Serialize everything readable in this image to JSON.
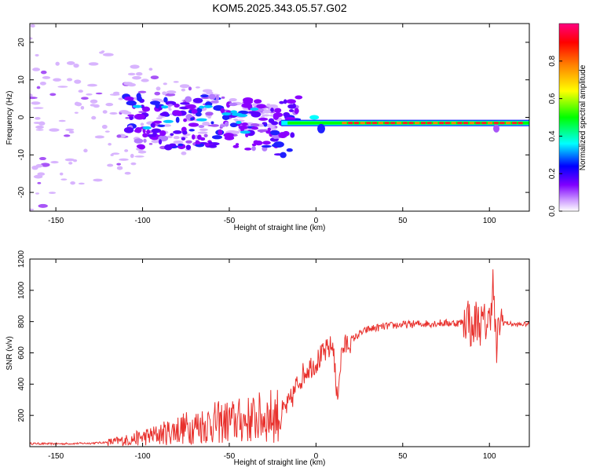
{
  "figure_title": "KOM5.2025.343.05.57.G02",
  "colors": {
    "snr_line": "#e8312d",
    "background": "#ffffff"
  },
  "chart_data": [
    {
      "type": "heatmap",
      "title": "KOM5.2025.343.05.57.G02",
      "xlabel": "Height of straight line (km)",
      "ylabel": "Frequency (Hz)",
      "xlim": [
        -165,
        123
      ],
      "ylim": [
        -25,
        25
      ],
      "xticks": [
        -150,
        -100,
        -50,
        0,
        50,
        100
      ],
      "yticks": [
        -20,
        -10,
        0,
        10,
        20
      ],
      "colorbar": {
        "label": "Normalized spectral amplitude",
        "range": [
          0,
          1
        ],
        "ticks": [
          0.0,
          0.2,
          0.4,
          0.6,
          0.8
        ],
        "colormap": [
          "#ffffff",
          "#cc99ff",
          "#7f00ff",
          "#0000ff",
          "#00ffff",
          "#00ff00",
          "#ffff00",
          "#ff8000",
          "#ff0000",
          "#ff0080"
        ]
      },
      "features": [
        {
          "name": "strong tonal line",
          "x_range": [
            -20,
            123
          ],
          "frequency_hz": -1.5,
          "amplitude": 0.9
        },
        {
          "name": "diffuse scattering",
          "x_range": [
            -165,
            -20
          ],
          "frequency_range_hz": [
            -25,
            25
          ],
          "amplitude": 0.2
        }
      ]
    },
    {
      "type": "line",
      "xlabel": "Height of straight line (km)",
      "ylabel": "SNR (v/v)",
      "xlim": [
        -165,
        123
      ],
      "ylim": [
        0,
        1200
      ],
      "xticks": [
        -150,
        -100,
        -50,
        0,
        50,
        100
      ],
      "yticks": [
        200,
        400,
        600,
        800,
        1000,
        1200
      ],
      "series": [
        {
          "name": "SNR",
          "x": [
            -165,
            -150,
            -130,
            -120,
            -110,
            -100,
            -90,
            -80,
            -70,
            -60,
            -50,
            -40,
            -30,
            -20,
            -15,
            -10,
            -5,
            0,
            5,
            10,
            12,
            15,
            20,
            25,
            30,
            40,
            50,
            60,
            70,
            80,
            85,
            88,
            90,
            92,
            95,
            100,
            102,
            104,
            106,
            110,
            115,
            123
          ],
          "values": [
            20,
            18,
            22,
            28,
            40,
            60,
            80,
            110,
            130,
            150,
            160,
            170,
            190,
            210,
            280,
            420,
            500,
            540,
            600,
            650,
            300,
            620,
            680,
            720,
            750,
            770,
            780,
            785,
            790,
            790,
            795,
            850,
            700,
            820,
            780,
            800,
            1050,
            600,
            810,
            790,
            780,
            785
          ]
        }
      ]
    }
  ]
}
